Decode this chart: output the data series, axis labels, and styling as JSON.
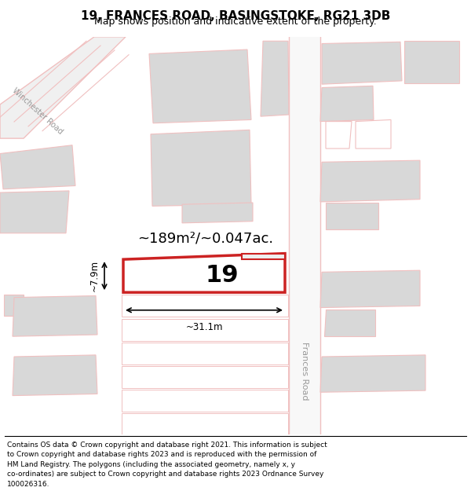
{
  "title": "19, FRANCES ROAD, BASINGSTOKE, RG21 3DB",
  "subtitle": "Map shows position and indicative extent of the property.",
  "footer_lines": [
    "Contains OS data © Crown copyright and database right 2021. This information is subject",
    "to Crown copyright and database rights 2023 and is reproduced with the permission of",
    "HM Land Registry. The polygons (including the associated geometry, namely x, y",
    "co-ordinates) are subject to Crown copyright and database rights 2023 Ordnance Survey",
    "100026316."
  ],
  "area_text": "~189m²/~0.047ac.",
  "width_text": "~31.1m",
  "height_text": "~7.9m",
  "plot_number": "19",
  "bg_color": "#ffffff",
  "road_color_light": "#f0c0c0",
  "road_color_dark": "#cc2222",
  "building_fill": "#d8d8d8",
  "road_label_frances": "Frances Road",
  "road_label_winchester": "Winchester Road"
}
